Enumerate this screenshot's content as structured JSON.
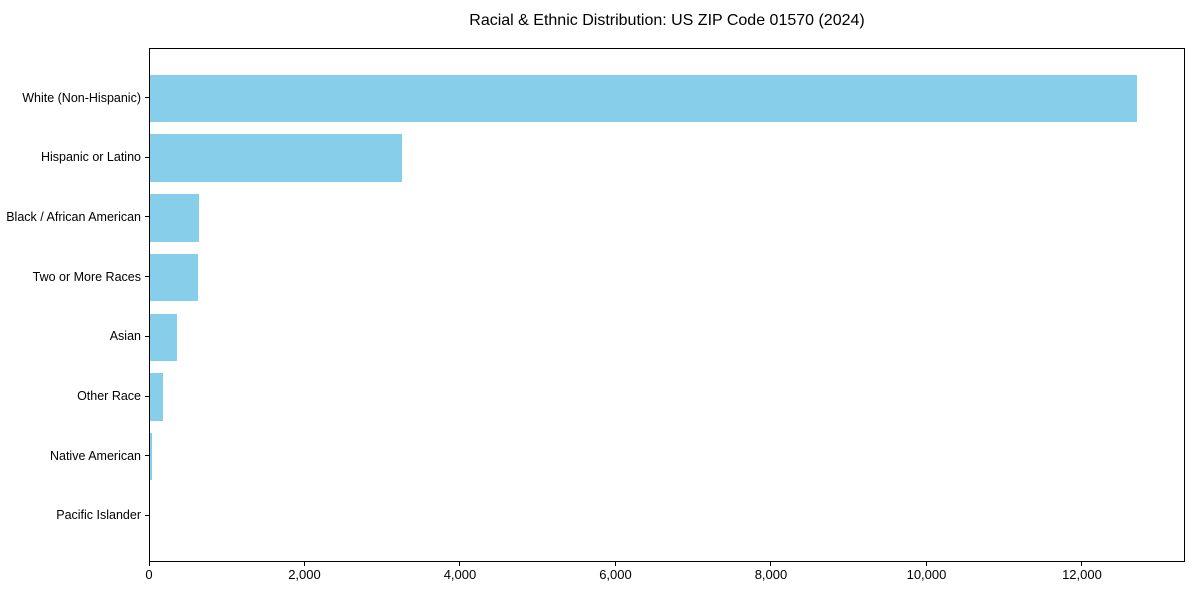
{
  "chart_data": {
    "type": "bar",
    "orientation": "horizontal",
    "title": "Racial & Ethnic Distribution: US ZIP Code 01570 (2024)",
    "categories": [
      "White (Non-Hispanic)",
      "Hispanic or Latino",
      "Black / African American",
      "Two or More Races",
      "Asian",
      "Other Race",
      "Native American",
      "Pacific Islander"
    ],
    "values": [
      12695,
      3240,
      630,
      620,
      350,
      170,
      20,
      0
    ],
    "xlabel": "",
    "ylabel": "",
    "xlim": [
      0,
      13325
    ],
    "x_ticks": [
      0,
      2000,
      4000,
      6000,
      8000,
      10000,
      12000
    ],
    "x_tick_labels": [
      "0",
      "2,000",
      "4,000",
      "6,000",
      "8,000",
      "10,000",
      "12,000"
    ],
    "bar_color": "#87CEEB",
    "grid": false,
    "legend": null
  }
}
